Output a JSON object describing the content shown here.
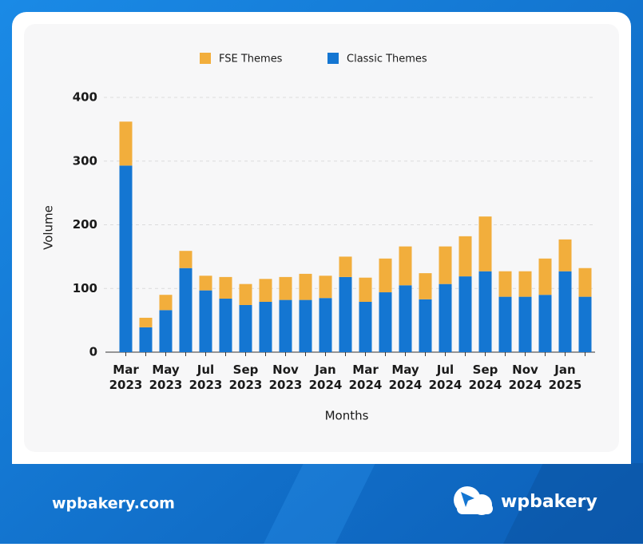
{
  "chart_data": {
    "type": "bar",
    "stacked": true,
    "categories": [
      "Mar 2023",
      null,
      "May 2023",
      null,
      "Jul 2023",
      null,
      "Sep 2023",
      null,
      "Nov 2023",
      null,
      "Jan 2024",
      null,
      "Mar 2024",
      null,
      "May 2024",
      null,
      "Jul 2024",
      null,
      "Sep 2024",
      null,
      "Nov 2024",
      null,
      "Jan 2025",
      null
    ],
    "series": [
      {
        "name": "FSE Themes",
        "color": "#f2ae3c",
        "values": [
          69,
          15,
          24,
          27,
          23,
          34,
          33,
          36,
          36,
          41,
          35,
          32,
          38,
          53,
          61,
          41,
          59,
          63,
          86,
          40,
          40,
          57,
          50,
          45
        ]
      },
      {
        "name": "Classic Themes",
        "color": "#1476d2",
        "values": [
          293,
          39,
          66,
          132,
          97,
          84,
          74,
          79,
          82,
          82,
          85,
          118,
          79,
          94,
          105,
          83,
          107,
          119,
          127,
          87,
          87,
          90,
          127,
          87
        ]
      }
    ],
    "y_label": "Volume",
    "x_label": "Months",
    "ylim": [
      0,
      400
    ],
    "yticks": [
      0,
      100,
      200,
      300,
      400
    ],
    "grid": true,
    "legend": "top"
  },
  "footer": {
    "url": "wpbakery.com",
    "brand": "wpbakery"
  }
}
